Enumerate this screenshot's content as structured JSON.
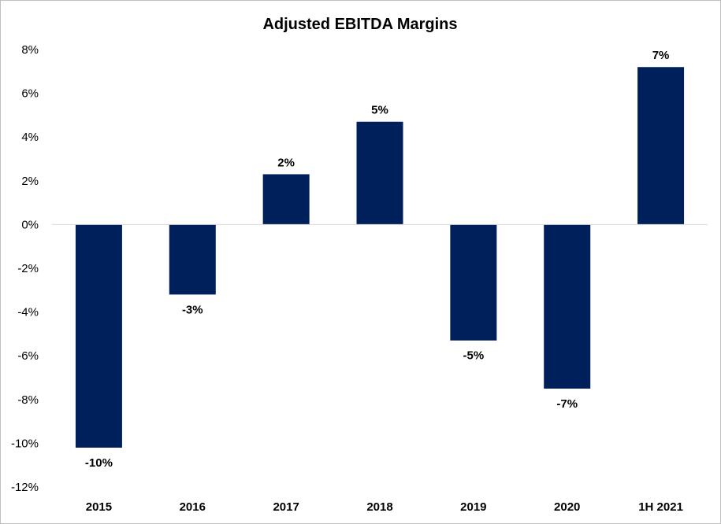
{
  "colors": {
    "bar": "#00205B",
    "axis": "#d9d9d9",
    "border": "#bfbfbf"
  },
  "chart_data": {
    "type": "bar",
    "title": "Adjusted EBITDA Margins",
    "xlabel": "",
    "ylabel": "",
    "categories": [
      "2015",
      "2016",
      "2017",
      "2018",
      "2019",
      "2020",
      "1H 2021"
    ],
    "values": [
      -10.2,
      -3.2,
      2.3,
      4.7,
      -5.3,
      -7.5,
      7.2
    ],
    "data_labels": [
      "-10%",
      "-3%",
      "2%",
      "5%",
      "-5%",
      "-7%",
      "7%"
    ],
    "ylim": [
      -12,
      8
    ],
    "yticks": [
      8,
      6,
      4,
      2,
      0,
      -2,
      -4,
      -6,
      -8,
      -10,
      -12
    ],
    "ytick_labels": [
      "8%",
      "6%",
      "4%",
      "2%",
      "0%",
      "-2%",
      "-4%",
      "-6%",
      "-8%",
      "-10%",
      "-12%"
    ],
    "grid": false,
    "legend": "none"
  }
}
